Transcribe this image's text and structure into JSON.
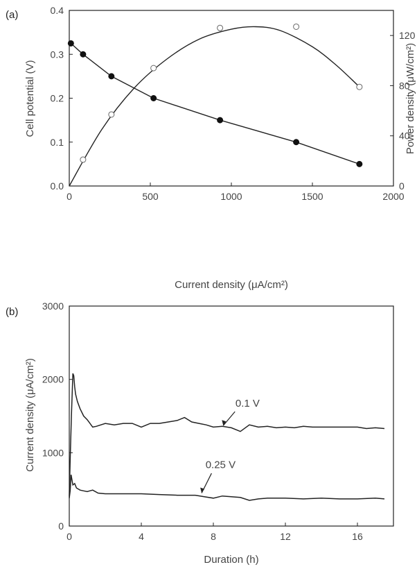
{
  "chart_data": [
    {
      "panel": "(a)",
      "type": "scatter",
      "xlabel": "Current density (μA/cm²)",
      "ylabel": "Cell potential (V)",
      "y2label": "Power density (μW/cm²)",
      "xlim": [
        0,
        2000
      ],
      "ylim": [
        0,
        0.4
      ],
      "y2lim": [
        0,
        140
      ],
      "xticks": [
        "0",
        "500",
        "1000",
        "1500",
        "2000"
      ],
      "yticks": [
        "0.0",
        "0.1",
        "0.2",
        "0.3",
        "0.4"
      ],
      "y2ticks": [
        "0",
        "40",
        "80",
        "120"
      ],
      "series": [
        {
          "marker": "filled-circle",
          "axis": "left",
          "x": [
            10,
            85,
            260,
            520,
            930,
            1400,
            1790
          ],
          "y": [
            0.325,
            0.3,
            0.25,
            0.2,
            0.15,
            0.1,
            0.05
          ]
        },
        {
          "marker": "open-circle",
          "axis": "right",
          "x": [
            85,
            260,
            520,
            930,
            1400,
            1790
          ],
          "y": [
            21,
            57,
            94,
            126,
            127,
            79
          ]
        }
      ]
    },
    {
      "panel": "(b)",
      "type": "line",
      "xlabel": "Duration (h)",
      "ylabel": "Current density (μA/cm²)",
      "xlim": [
        0,
        18
      ],
      "ylim": [
        0,
        3000
      ],
      "xticks": [
        "0",
        "4",
        "8",
        "12",
        "16"
      ],
      "yticks": [
        "0",
        "1000",
        "2000",
        "3000"
      ],
      "series": [
        {
          "name": "0.1 V",
          "x": [
            0,
            0.05,
            0.12,
            0.2,
            0.25,
            0.3,
            0.35,
            0.45,
            0.6,
            0.8,
            1.0,
            1.3,
            1.5,
            2.0,
            2.5,
            3.0,
            3.5,
            4.0,
            4.5,
            5.0,
            5.5,
            6.0,
            6.4,
            6.8,
            7.2,
            7.6,
            8.0,
            8.5,
            9.0,
            9.5,
            10.0,
            10.5,
            11.0,
            11.5,
            12.0,
            12.5,
            13.0,
            13.5,
            14.0,
            15.0,
            16.0,
            16.5,
            17.0,
            17.5
          ],
          "y": [
            400,
            900,
            1500,
            2080,
            2050,
            1900,
            1800,
            1700,
            1600,
            1500,
            1450,
            1350,
            1360,
            1400,
            1380,
            1400,
            1400,
            1350,
            1400,
            1400,
            1420,
            1440,
            1480,
            1420,
            1400,
            1380,
            1350,
            1360,
            1340,
            1290,
            1380,
            1350,
            1360,
            1340,
            1350,
            1340,
            1360,
            1350,
            1350,
            1350,
            1350,
            1330,
            1340,
            1330
          ]
        },
        {
          "name": "0.25 V",
          "x": [
            0,
            0.05,
            0.1,
            0.2,
            0.3,
            0.4,
            0.6,
            0.8,
            1.0,
            1.3,
            1.6,
            2.0,
            3.0,
            4.0,
            5.0,
            6.0,
            7.0,
            7.5,
            8.0,
            8.5,
            9.0,
            9.5,
            10.0,
            10.5,
            11.0,
            12.0,
            13.0,
            14.0,
            15.0,
            16.0,
            17.0,
            17.5
          ],
          "y": [
            380,
            480,
            700,
            560,
            580,
            520,
            490,
            480,
            470,
            490,
            450,
            440,
            440,
            440,
            430,
            420,
            420,
            400,
            380,
            410,
            400,
            390,
            350,
            370,
            380,
            380,
            370,
            380,
            370,
            370,
            380,
            370
          ]
        }
      ]
    }
  ]
}
